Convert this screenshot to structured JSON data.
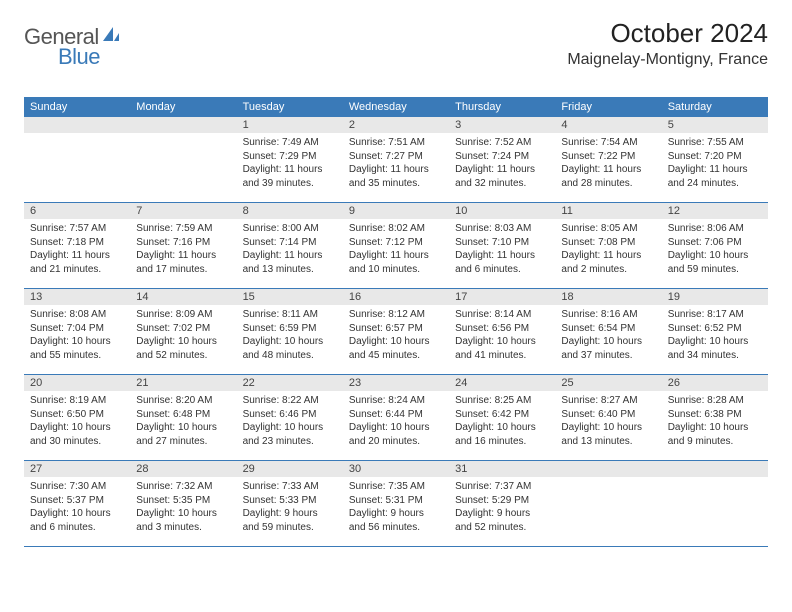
{
  "logo": {
    "text1": "General",
    "text2": "Blue"
  },
  "title": "October 2024",
  "location": "Maignelay-Montigny, France",
  "colors": {
    "header_bg": "#3a7ab8",
    "daynum_bg": "#e8e8e8",
    "text": "#333333",
    "border": "#3a7ab8"
  },
  "weekdays": [
    "Sunday",
    "Monday",
    "Tuesday",
    "Wednesday",
    "Thursday",
    "Friday",
    "Saturday"
  ],
  "layout": {
    "leading_blanks": 2,
    "trailing_blanks": 2
  },
  "days": [
    {
      "n": "1",
      "sunrise": "7:49 AM",
      "sunset": "7:29 PM",
      "daylight": "11 hours and 39 minutes."
    },
    {
      "n": "2",
      "sunrise": "7:51 AM",
      "sunset": "7:27 PM",
      "daylight": "11 hours and 35 minutes."
    },
    {
      "n": "3",
      "sunrise": "7:52 AM",
      "sunset": "7:24 PM",
      "daylight": "11 hours and 32 minutes."
    },
    {
      "n": "4",
      "sunrise": "7:54 AM",
      "sunset": "7:22 PM",
      "daylight": "11 hours and 28 minutes."
    },
    {
      "n": "5",
      "sunrise": "7:55 AM",
      "sunset": "7:20 PM",
      "daylight": "11 hours and 24 minutes."
    },
    {
      "n": "6",
      "sunrise": "7:57 AM",
      "sunset": "7:18 PM",
      "daylight": "11 hours and 21 minutes."
    },
    {
      "n": "7",
      "sunrise": "7:59 AM",
      "sunset": "7:16 PM",
      "daylight": "11 hours and 17 minutes."
    },
    {
      "n": "8",
      "sunrise": "8:00 AM",
      "sunset": "7:14 PM",
      "daylight": "11 hours and 13 minutes."
    },
    {
      "n": "9",
      "sunrise": "8:02 AM",
      "sunset": "7:12 PM",
      "daylight": "11 hours and 10 minutes."
    },
    {
      "n": "10",
      "sunrise": "8:03 AM",
      "sunset": "7:10 PM",
      "daylight": "11 hours and 6 minutes."
    },
    {
      "n": "11",
      "sunrise": "8:05 AM",
      "sunset": "7:08 PM",
      "daylight": "11 hours and 2 minutes."
    },
    {
      "n": "12",
      "sunrise": "8:06 AM",
      "sunset": "7:06 PM",
      "daylight": "10 hours and 59 minutes."
    },
    {
      "n": "13",
      "sunrise": "8:08 AM",
      "sunset": "7:04 PM",
      "daylight": "10 hours and 55 minutes."
    },
    {
      "n": "14",
      "sunrise": "8:09 AM",
      "sunset": "7:02 PM",
      "daylight": "10 hours and 52 minutes."
    },
    {
      "n": "15",
      "sunrise": "8:11 AM",
      "sunset": "6:59 PM",
      "daylight": "10 hours and 48 minutes."
    },
    {
      "n": "16",
      "sunrise": "8:12 AM",
      "sunset": "6:57 PM",
      "daylight": "10 hours and 45 minutes."
    },
    {
      "n": "17",
      "sunrise": "8:14 AM",
      "sunset": "6:56 PM",
      "daylight": "10 hours and 41 minutes."
    },
    {
      "n": "18",
      "sunrise": "8:16 AM",
      "sunset": "6:54 PM",
      "daylight": "10 hours and 37 minutes."
    },
    {
      "n": "19",
      "sunrise": "8:17 AM",
      "sunset": "6:52 PM",
      "daylight": "10 hours and 34 minutes."
    },
    {
      "n": "20",
      "sunrise": "8:19 AM",
      "sunset": "6:50 PM",
      "daylight": "10 hours and 30 minutes."
    },
    {
      "n": "21",
      "sunrise": "8:20 AM",
      "sunset": "6:48 PM",
      "daylight": "10 hours and 27 minutes."
    },
    {
      "n": "22",
      "sunrise": "8:22 AM",
      "sunset": "6:46 PM",
      "daylight": "10 hours and 23 minutes."
    },
    {
      "n": "23",
      "sunrise": "8:24 AM",
      "sunset": "6:44 PM",
      "daylight": "10 hours and 20 minutes."
    },
    {
      "n": "24",
      "sunrise": "8:25 AM",
      "sunset": "6:42 PM",
      "daylight": "10 hours and 16 minutes."
    },
    {
      "n": "25",
      "sunrise": "8:27 AM",
      "sunset": "6:40 PM",
      "daylight": "10 hours and 13 minutes."
    },
    {
      "n": "26",
      "sunrise": "8:28 AM",
      "sunset": "6:38 PM",
      "daylight": "10 hours and 9 minutes."
    },
    {
      "n": "27",
      "sunrise": "7:30 AM",
      "sunset": "5:37 PM",
      "daylight": "10 hours and 6 minutes."
    },
    {
      "n": "28",
      "sunrise": "7:32 AM",
      "sunset": "5:35 PM",
      "daylight": "10 hours and 3 minutes."
    },
    {
      "n": "29",
      "sunrise": "7:33 AM",
      "sunset": "5:33 PM",
      "daylight": "9 hours and 59 minutes."
    },
    {
      "n": "30",
      "sunrise": "7:35 AM",
      "sunset": "5:31 PM",
      "daylight": "9 hours and 56 minutes."
    },
    {
      "n": "31",
      "sunrise": "7:37 AM",
      "sunset": "5:29 PM",
      "daylight": "9 hours and 52 minutes."
    }
  ],
  "labels": {
    "sunrise": "Sunrise:",
    "sunset": "Sunset:",
    "daylight": "Daylight:"
  }
}
